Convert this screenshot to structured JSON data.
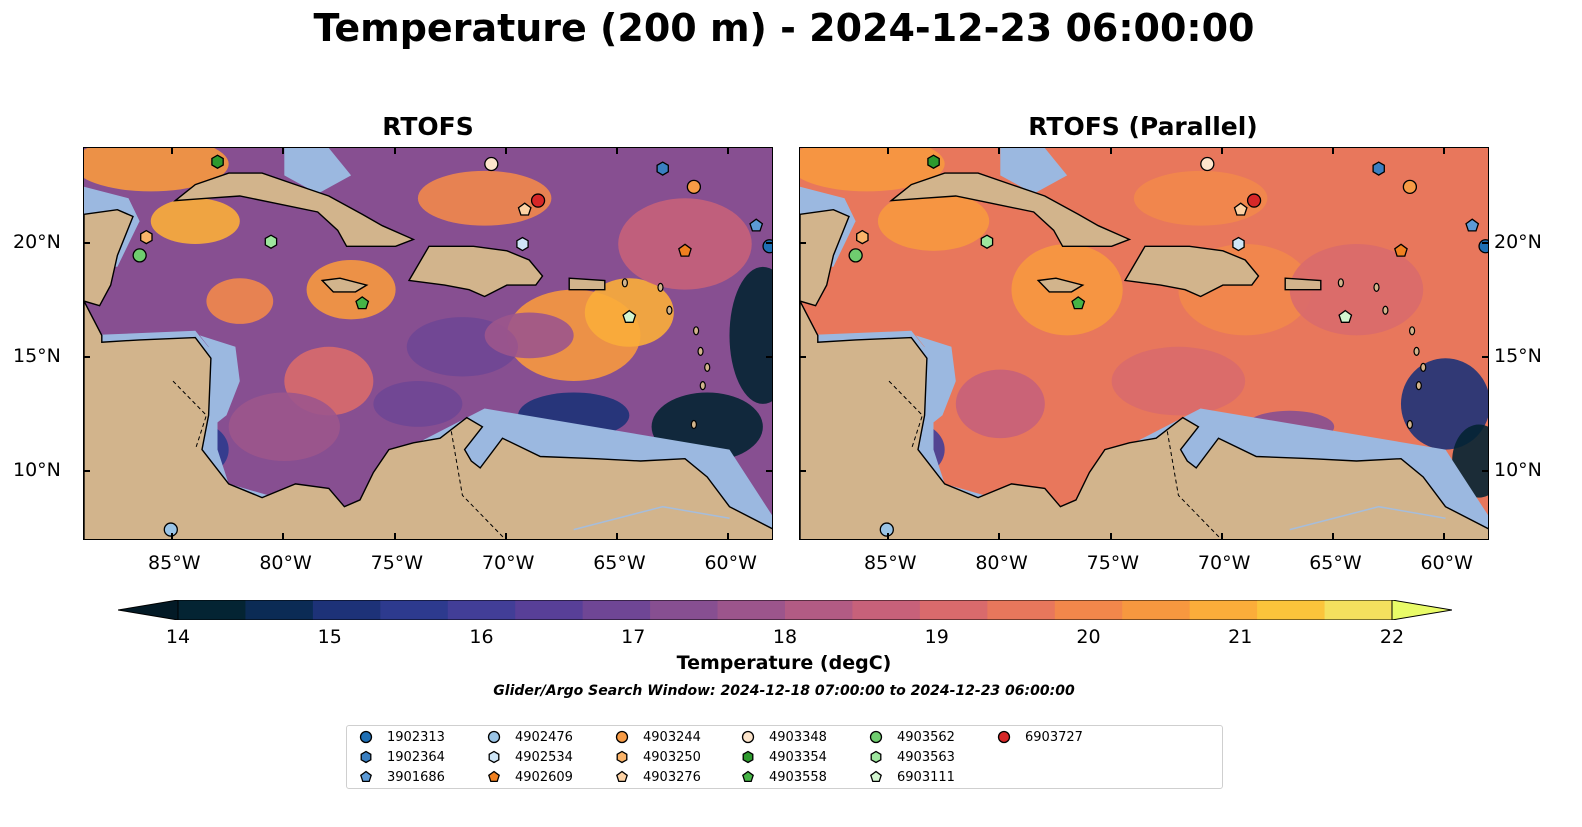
{
  "title": "Temperature (200 m) - 2024-12-23 06:00:00",
  "panels": [
    {
      "title": "RTOFS",
      "id": "rtofs"
    },
    {
      "title": "RTOFS (Parallel)",
      "id": "parallel"
    }
  ],
  "map": {
    "lon_range": [
      -89,
      -58
    ],
    "lat_range": [
      7,
      24.2
    ],
    "lon_ticks": [
      {
        "lon": -85,
        "label": "85°W"
      },
      {
        "lon": -80,
        "label": "80°W"
      },
      {
        "lon": -75,
        "label": "75°W"
      },
      {
        "lon": -70,
        "label": "70°W"
      },
      {
        "lon": -65,
        "label": "65°W"
      },
      {
        "lon": -60,
        "label": "60°W"
      }
    ],
    "lat_ticks": [
      {
        "lat": 20,
        "label": "20°N"
      },
      {
        "lat": 15,
        "label": "15°N"
      },
      {
        "lat": 10,
        "label": "10°N"
      }
    ],
    "colors": {
      "land": "#d2b48c",
      "shelf": "#9bb8e0",
      "deep": "#052535",
      "rivers": "#a6bddb"
    }
  },
  "colorbar": {
    "label": "Temperature (degC)",
    "min": 14,
    "max": 22,
    "step": 0.5,
    "ticks": [
      {
        "value": 14,
        "label": "14"
      },
      {
        "value": 15,
        "label": "15"
      },
      {
        "value": 16,
        "label": "16"
      },
      {
        "value": 17,
        "label": "17"
      },
      {
        "value": 18,
        "label": "18"
      },
      {
        "value": 19,
        "label": "19"
      },
      {
        "value": 20,
        "label": "20"
      },
      {
        "value": 21,
        "label": "21"
      },
      {
        "value": 22,
        "label": "22"
      }
    ],
    "colors": [
      "#042433",
      "#0b2b55",
      "#1d3278",
      "#2d3a8e",
      "#423e97",
      "#583f98",
      "#6f4695",
      "#874f91",
      "#9c558c",
      "#b25b84",
      "#c7617a",
      "#d96a6c",
      "#e8775c",
      "#f2874b",
      "#f7983f",
      "#fbad3a",
      "#fbc43b",
      "#f4e05e"
    ],
    "under_color": "#031a26",
    "over_color": "#e9fb68"
  },
  "search_window": "Glider/Argo Search Window: 2024-12-18 07:00:00 to 2024-12-23 06:00:00",
  "floats": [
    {
      "id": "1902313",
      "marker": "circle",
      "color": "#1f6fb4",
      "lon": -58.2,
      "lat": 19.9
    },
    {
      "id": "1902364",
      "marker": "hexagon",
      "color": "#3a7fc1",
      "lon": -63.0,
      "lat": 23.3
    },
    {
      "id": "3901686",
      "marker": "pentagon",
      "color": "#5c9ad6",
      "lon": -58.8,
      "lat": 20.8
    },
    {
      "id": "4902476",
      "marker": "circle",
      "color": "#9ac4e6",
      "lon": -85.1,
      "lat": 7.5
    },
    {
      "id": "4902534",
      "marker": "hexagon",
      "color": "#cfe6f7",
      "lon": -69.3,
      "lat": 20.0
    },
    {
      "id": "4902609",
      "marker": "pentagon",
      "color": "#f08020",
      "lon": -62.0,
      "lat": 19.7
    },
    {
      "id": "4903244",
      "marker": "circle",
      "color": "#f79b45",
      "lon": -61.6,
      "lat": 22.5
    },
    {
      "id": "4903250",
      "marker": "hexagon",
      "color": "#fbb46a",
      "lon": -86.2,
      "lat": 20.3
    },
    {
      "id": "4903276",
      "marker": "pentagon",
      "color": "#fdd2a5",
      "lon": -69.2,
      "lat": 21.5
    },
    {
      "id": "4903348",
      "marker": "circle",
      "color": "#fde5cc",
      "lon": -70.7,
      "lat": 23.5
    },
    {
      "id": "4903354",
      "marker": "hexagon",
      "color": "#2e9a2e",
      "lon": -83.0,
      "lat": 23.6
    },
    {
      "id": "4903558",
      "marker": "pentagon",
      "color": "#46b446",
      "lon": -76.5,
      "lat": 17.4
    },
    {
      "id": "4903562",
      "marker": "circle",
      "color": "#6fcd6f",
      "lon": -86.5,
      "lat": 19.5
    },
    {
      "id": "4903563",
      "marker": "hexagon",
      "color": "#9ee69e",
      "lon": -80.6,
      "lat": 20.1
    },
    {
      "id": "6903111",
      "marker": "pentagon",
      "color": "#d3f5d0",
      "lon": -64.5,
      "lat": 16.8
    },
    {
      "id": "6903727",
      "marker": "circle",
      "color": "#d62728",
      "lon": -68.6,
      "lat": 21.9
    }
  ]
}
